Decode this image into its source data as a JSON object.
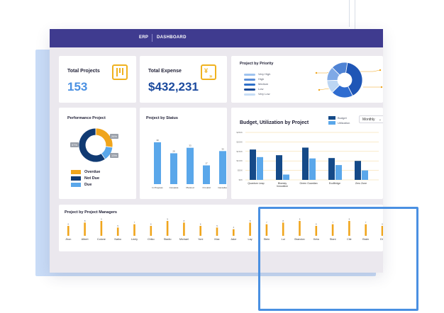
{
  "header": {
    "app": "ERP",
    "section": "DASHBOARD"
  },
  "kpis": {
    "projects": {
      "label": "Total Projects",
      "value": "153"
    },
    "expense": {
      "label": "Total Expense",
      "value": "$432,231"
    }
  },
  "priority": {
    "title": "Project by Priority",
    "legend": [
      {
        "label": "Very High",
        "color": "#9ec3ef"
      },
      {
        "label": "High",
        "color": "#5b8ed8"
      },
      {
        "label": "Medium",
        "color": "#2d6fc9"
      },
      {
        "label": "Low",
        "color": "#1a4a97"
      },
      {
        "label": "Very Low",
        "color": "#c6dcf5"
      }
    ],
    "slices": [
      {
        "label": "Very High",
        "value": 15,
        "color": "#4f83d4"
      },
      {
        "label": "High",
        "value": 40,
        "color": "#1f56b6"
      },
      {
        "label": "Medium",
        "value": 20,
        "color": "#2f6cd0"
      },
      {
        "label": "Low",
        "value": 12,
        "color": "#bcd6f3"
      },
      {
        "label": "Very Low",
        "value": 13,
        "color": "#7fa9e6"
      }
    ]
  },
  "performance": {
    "title": "Performance Project",
    "badges": [
      "57%",
      "26%",
      "13%"
    ],
    "legend": [
      {
        "label": "Overdue",
        "color": "#f0a51c"
      },
      {
        "label": "Not Due",
        "color": "#103a73"
      },
      {
        "label": "Due",
        "color": "#5aa7ea"
      }
    ],
    "slices": [
      {
        "label": "Overdue",
        "value": 26,
        "color": "#f0a51c"
      },
      {
        "label": "Due",
        "value": 13,
        "color": "#5aa7ea"
      },
      {
        "label": "Not Due",
        "value": 57,
        "color": "#103a73"
      }
    ]
  },
  "status": {
    "title": "Project by Status",
    "color": "#5aa7ea",
    "chart_data": {
      "type": "bar",
      "categories": [
        "In Progress",
        "Complete",
        "Planned",
        "On Hold",
        "Cancelled"
      ],
      "values": [
        38,
        28,
        33,
        17,
        30
      ],
      "ylim": [
        0,
        45
      ]
    }
  },
  "budget": {
    "title": "Budget, Utilization by Project",
    "period": "Monthly",
    "legend": [
      {
        "label": "Budget",
        "color": "#154a88"
      },
      {
        "label": "Utilization",
        "color": "#5aa7ea"
      }
    ],
    "yticks": [
      "$250K",
      "$200K",
      "$150K",
      "$100K",
      "$50K",
      "$0K"
    ],
    "chart_data": {
      "type": "bar",
      "categories": [
        "Quantum Leap",
        "Bluesky Innovation",
        "Green Guardian",
        "EcoBridge",
        "Zero Zone"
      ],
      "series": [
        {
          "name": "Budget",
          "values": [
            160,
            130,
            170,
            115,
            100
          ]
        },
        {
          "name": "Utilization",
          "values": [
            120,
            28,
            113,
            78,
            50
          ]
        }
      ],
      "ylim": [
        0,
        250
      ]
    }
  },
  "managers": {
    "title": "Project by Project Managers",
    "color": "#f0a51c",
    "chart_data": {
      "type": "bar",
      "categories": [
        "Jhon",
        "Albert",
        "Colone",
        "Naiko",
        "Lenly",
        "Chiko",
        "Stadio",
        "Michael",
        "Yoni",
        "Max",
        "Jake",
        "Lay",
        "Stein",
        "Lui",
        "Brandon",
        "Keta",
        "Stani",
        "Cile",
        "Brain",
        "Dio"
      ],
      "values": [
        6,
        8,
        9,
        5,
        7,
        6,
        9,
        8,
        6,
        5,
        4,
        8,
        7,
        8,
        9,
        6,
        7,
        9,
        7,
        6
      ],
      "ylim": [
        0,
        12
      ]
    }
  }
}
